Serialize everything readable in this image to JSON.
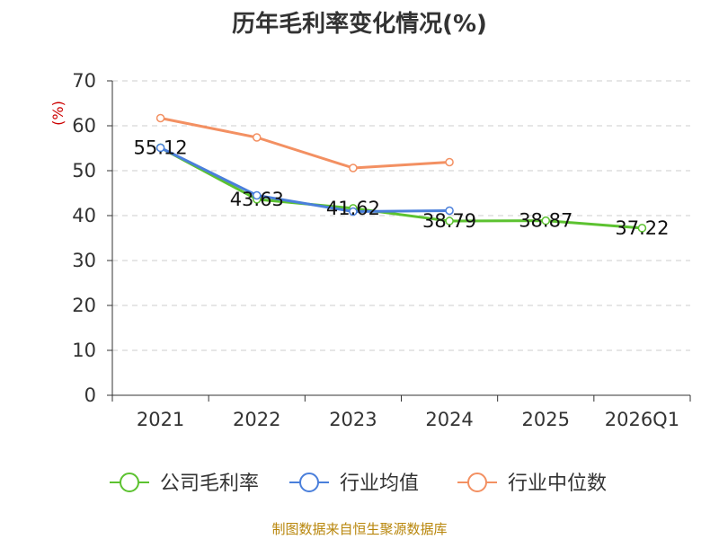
{
  "title": "历年毛利率变化情况(%)",
  "source": "制图数据来自恒生聚源数据库",
  "chart_data": {
    "type": "line",
    "title": "历年毛利率变化情况(%)",
    "ylabel": "(%)",
    "xlabel": "",
    "ylim": [
      0,
      70
    ],
    "yticks": [
      0,
      10,
      20,
      30,
      40,
      50,
      60,
      70
    ],
    "categories": [
      "2021",
      "2022",
      "2023",
      "2024",
      "2025",
      "2026Q1"
    ],
    "grid": true,
    "legend_position": "bottom",
    "series": [
      {
        "name": "公司毛利率",
        "color": "#5cc230",
        "values": [
          55.12,
          43.63,
          41.62,
          38.79,
          38.87,
          37.22
        ],
        "labels": [
          "55.12",
          "43.63",
          "41.62",
          "38.79",
          "38.87",
          "37.22"
        ]
      },
      {
        "name": "行业均值",
        "color": "#4a7fdb",
        "values": [
          55.1,
          44.5,
          40.9,
          41.1,
          null,
          null
        ]
      },
      {
        "name": "行业中位数",
        "color": "#f39062",
        "values": [
          61.7,
          57.4,
          50.6,
          51.9,
          null,
          null
        ]
      }
    ]
  }
}
